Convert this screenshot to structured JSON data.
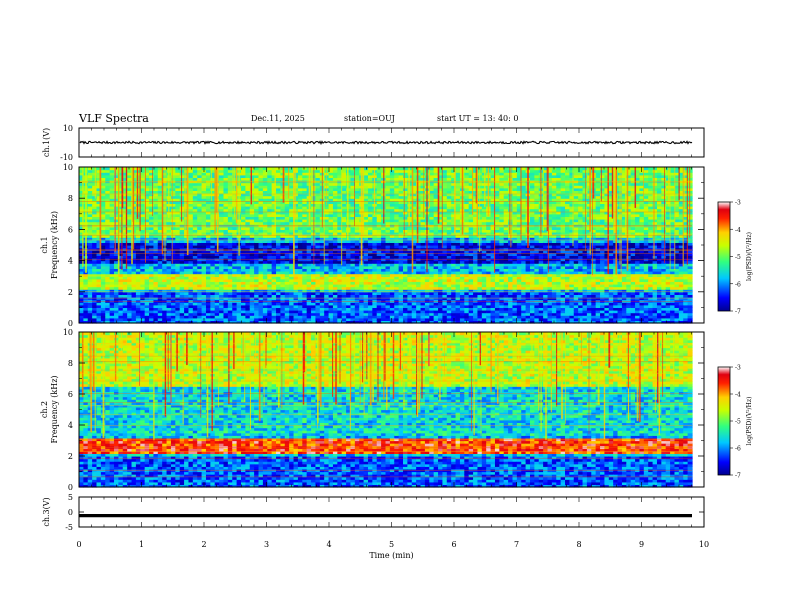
{
  "header": {
    "title": "VLF Spectra",
    "date": "Dec.11, 2025",
    "station": "station=OUJ",
    "start": "start  UT  =   13: 40: 0"
  },
  "chart_data": [
    {
      "type": "line",
      "panel": "ch1-waveform",
      "ylabel": "ch.1(V)",
      "ylim": [
        -10,
        10
      ],
      "yticks": [
        "10",
        "-10"
      ],
      "xlim": [
        0,
        10
      ],
      "series": [
        {
          "description_level": 0,
          "amplitude_range": [
            -1,
            1
          ]
        }
      ]
    },
    {
      "type": "heatmap",
      "panel": "ch1-spectrogram",
      "ylabel": [
        "ch.1",
        "Frequency (kHz)"
      ],
      "ylim": [
        0,
        10
      ],
      "yticks": [
        "0",
        "2",
        "4",
        "6",
        "8",
        "10"
      ],
      "xlim": [
        0,
        9.8
      ],
      "colorbar": {
        "label": "log(PSD)(V²/Hz)",
        "range": [
          -7,
          -3
        ],
        "ticks": [
          "-3",
          "-4",
          "-5",
          "-6",
          "-7"
        ]
      },
      "bands": [
        {
          "freq_khz": [
            2.2,
            3.2
          ],
          "level": -4.6
        },
        {
          "freq_khz": [
            3.8,
            5.2
          ],
          "level": -6.6
        },
        {
          "freq_khz": [
            5.5,
            10
          ],
          "level": -5.0
        },
        {
          "freq_khz": [
            0,
            2.0
          ],
          "level": -6.2
        }
      ]
    },
    {
      "type": "heatmap",
      "panel": "ch2-spectrogram",
      "ylabel": [
        "ch.2",
        "Frequency (kHz)"
      ],
      "ylim": [
        0,
        10
      ],
      "yticks": [
        "0",
        "2",
        "4",
        "6",
        "8",
        "10"
      ],
      "xlim": [
        0,
        9.8
      ],
      "colorbar": {
        "label": "log(PSD)(V²/Hz)",
        "range": [
          -7,
          -3
        ],
        "ticks": [
          "-3",
          "-4",
          "-5",
          "-6",
          "-7"
        ]
      },
      "bands": [
        {
          "freq_khz": [
            2.1,
            3.2
          ],
          "level": -3.6
        },
        {
          "freq_khz": [
            3.3,
            6.5
          ],
          "level": -5.6
        },
        {
          "freq_khz": [
            6.5,
            10
          ],
          "level": -4.6
        },
        {
          "freq_khz": [
            0,
            2.0
          ],
          "level": -6.2
        }
      ]
    },
    {
      "type": "line",
      "panel": "ch3-waveform",
      "ylabel": "ch.3(V)",
      "ylim": [
        -5,
        5
      ],
      "yticks": [
        "5",
        "0",
        "-5"
      ],
      "xlim": [
        0,
        10
      ],
      "xlabel": "Time (min)",
      "xticks": [
        "0",
        "1",
        "2",
        "3",
        "4",
        "5",
        "6",
        "7",
        "8",
        "9",
        "10"
      ],
      "series": [
        {
          "constant_value": -1.2
        }
      ]
    }
  ]
}
